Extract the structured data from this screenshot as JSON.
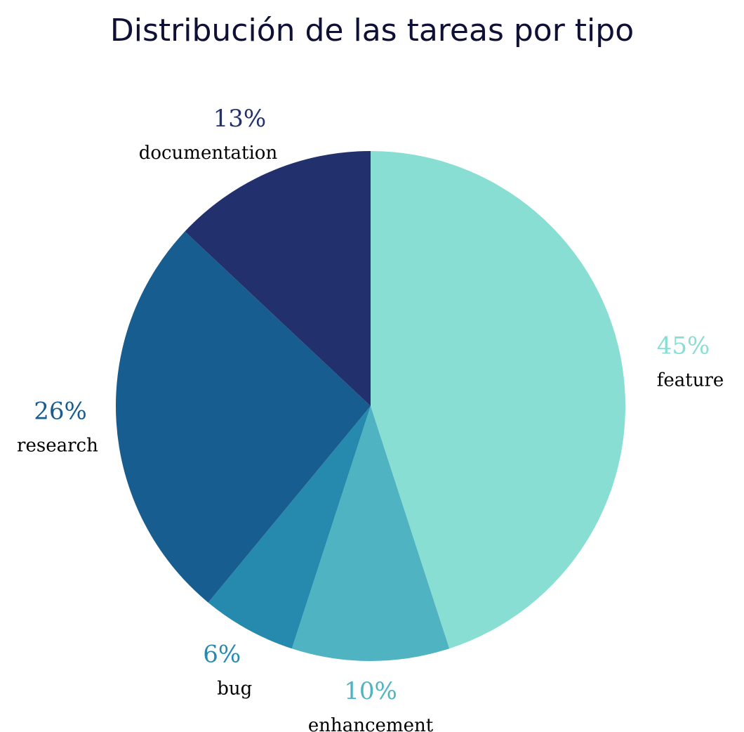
{
  "chart_data": {
    "type": "pie",
    "title": "Distribución de las tareas por tipo",
    "start_angle_deg": 90,
    "direction": "clockwise",
    "slices": [
      {
        "label": "feature",
        "value": 45,
        "pct_label": "45%",
        "color": "#88ded3"
      },
      {
        "label": "enhancement",
        "value": 10,
        "pct_label": "10%",
        "color": "#4fb3c2"
      },
      {
        "label": "bug",
        "value": 6,
        "pct_label": "6%",
        "color": "#268aae"
      },
      {
        "label": "research",
        "value": 26,
        "pct_label": "26%",
        "color": "#185d8f"
      },
      {
        "label": "documentation",
        "value": 13,
        "pct_label": "13%",
        "color": "#22306d"
      }
    ]
  }
}
